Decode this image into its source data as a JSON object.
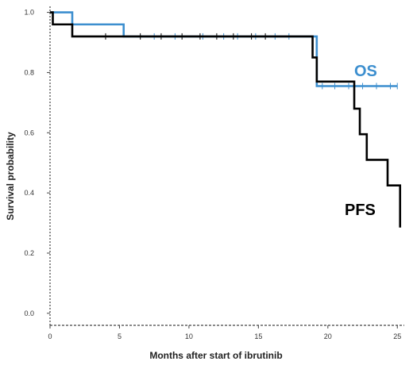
{
  "chart_data": {
    "type": "line",
    "xlabel": "Months after start of ibrutinib",
    "ylabel": "Survival probability",
    "xlim": [
      0,
      25.5
    ],
    "ylim": [
      -0.04,
      1.02
    ],
    "x_ticks": [
      0,
      5,
      10,
      15,
      20,
      25
    ],
    "y_ticks": [
      0.0,
      0.2,
      0.4,
      0.6,
      0.8,
      1.0
    ],
    "x_tick_labels": [
      "0",
      "5",
      "10",
      "15",
      "20",
      "25"
    ],
    "y_tick_labels": [
      "0.0",
      "0.2",
      "0.4",
      "0.6",
      "0.8",
      "1.0"
    ],
    "grid": false,
    "series": [
      {
        "name": "OS",
        "color": "#3d8fcf",
        "step_x": [
          0,
          0.2,
          1.6,
          5.3,
          18.9,
          19.2,
          25
        ],
        "step_y": [
          1.0,
          1.0,
          0.96,
          0.92,
          0.92,
          0.755,
          0.755
        ],
        "censor_x": [
          7.5,
          9,
          11,
          12.5,
          13.5,
          14.8,
          16.2,
          17.2,
          19.6,
          20.5,
          21.5,
          22.5,
          23.5,
          24.5,
          25
        ]
      },
      {
        "name": "PFS",
        "color": "#000000",
        "step_x": [
          0,
          0.2,
          1.6,
          16.5,
          18.9,
          19.2,
          21.9,
          22.3,
          22.8,
          24.3,
          25.2
        ],
        "step_y": [
          1.0,
          0.96,
          0.92,
          0.92,
          0.85,
          0.77,
          0.68,
          0.595,
          0.51,
          0.425,
          0.285
        ],
        "censor_x": [
          4,
          6.5,
          8,
          9.5,
          10.8,
          12,
          13.2,
          14.5,
          15.5
        ]
      }
    ]
  },
  "labels": {
    "os": "OS",
    "pfs": "PFS"
  }
}
